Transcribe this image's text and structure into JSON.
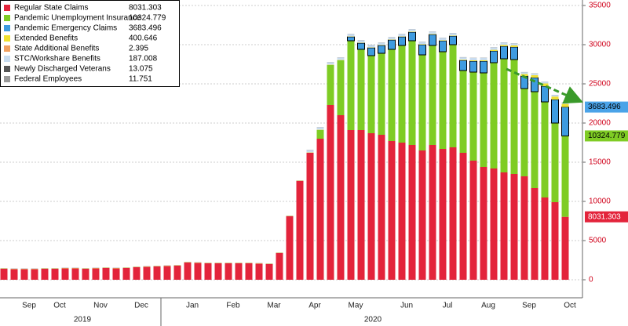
{
  "chart_data": {
    "type": "stacked_bar",
    "categories": [
      null,
      null,
      "Sep",
      null,
      null,
      "Oct",
      null,
      null,
      null,
      "Nov",
      null,
      null,
      null,
      "Dec",
      null,
      null,
      null,
      null,
      "Jan",
      null,
      null,
      null,
      "Feb",
      null,
      null,
      null,
      "Mar",
      null,
      null,
      null,
      "Apr",
      null,
      null,
      null,
      "May",
      null,
      null,
      null,
      null,
      "Jun",
      null,
      null,
      null,
      "Jul",
      null,
      null,
      null,
      "Aug",
      null,
      null,
      null,
      "Sep",
      null,
      null,
      null,
      "Oct"
    ],
    "years": [
      "2019",
      "2020"
    ],
    "series": [
      {
        "name": "Regular State Claims",
        "color": "#e3243b",
        "values": [
          1400,
          1350,
          1350,
          1350,
          1400,
          1400,
          1450,
          1450,
          1400,
          1450,
          1500,
          1450,
          1500,
          1600,
          1650,
          1700,
          1750,
          1800,
          2200,
          2150,
          2100,
          2100,
          2100,
          2100,
          2100,
          2050,
          2000,
          3400,
          8100,
          12600,
          16200,
          18000,
          22300,
          21000,
          19100,
          19100,
          18700,
          18500,
          17700,
          17500,
          17200,
          16500,
          17200,
          16700,
          16900,
          16200,
          15200,
          14400,
          14200,
          13700,
          13500,
          13200,
          11700,
          10500,
          9900,
          8031.303
        ]
      },
      {
        "name": "Pandemic Unemployment Insurance",
        "color": "#7fcc24",
        "values": [
          0,
          0,
          0,
          0,
          0,
          0,
          0,
          0,
          0,
          0,
          0,
          0,
          0,
          0,
          0,
          0,
          0,
          0,
          0,
          0,
          0,
          0,
          0,
          0,
          0,
          0,
          0,
          0,
          0,
          0,
          0,
          1100,
          5100,
          7000,
          11400,
          10300,
          9900,
          10400,
          11700,
          12400,
          13300,
          12200,
          12700,
          12400,
          13100,
          10500,
          11300,
          12000,
          13500,
          14500,
          14600,
          11200,
          12300,
          12200,
          10100,
          10324.779
        ]
      },
      {
        "name": "Pandemic Emergency Claims",
        "color": "#3e9be0",
        "values": [
          0,
          0,
          0,
          0,
          0,
          0,
          0,
          0,
          0,
          0,
          0,
          0,
          0,
          0,
          0,
          0,
          0,
          0,
          0,
          0,
          0,
          0,
          0,
          0,
          0,
          0,
          0,
          0,
          0,
          0,
          0,
          0,
          0,
          0,
          500,
          800,
          1000,
          1000,
          1200,
          1100,
          1100,
          1300,
          1400,
          1400,
          1100,
          1300,
          1400,
          1500,
          1500,
          1600,
          1600,
          1600,
          1800,
          2000,
          3000,
          3683.496
        ]
      },
      {
        "name": "Extended Benefits",
        "color": "#f0e030",
        "values": [
          40,
          40,
          40,
          40,
          40,
          40,
          40,
          40,
          40,
          40,
          40,
          40,
          40,
          40,
          40,
          40,
          40,
          40,
          40,
          40,
          40,
          40,
          40,
          40,
          40,
          40,
          40,
          40,
          40,
          40,
          40,
          40,
          40,
          40,
          40,
          40,
          40,
          40,
          40,
          40,
          60,
          60,
          60,
          60,
          60,
          80,
          100,
          120,
          140,
          170,
          200,
          250,
          300,
          350,
          380,
          400.646
        ]
      },
      {
        "name": "State Additional Benefits",
        "color": "#f0a060",
        "values": [
          3,
          3,
          3,
          3,
          3,
          3,
          3,
          3,
          3,
          3,
          3,
          3,
          3,
          3,
          3,
          3,
          3,
          3,
          3,
          3,
          3,
          3,
          3,
          3,
          3,
          3,
          3,
          3,
          3,
          3,
          3,
          3,
          3,
          3,
          3,
          3,
          3,
          3,
          3,
          3,
          3,
          3,
          3,
          3,
          3,
          3,
          3,
          3,
          3,
          3,
          3,
          3,
          3,
          3,
          3,
          2.395
        ]
      },
      {
        "name": "STC/Workshare Benefits",
        "color": "#c8dcf0",
        "values": [
          20,
          20,
          20,
          20,
          20,
          20,
          20,
          20,
          20,
          20,
          20,
          20,
          20,
          20,
          20,
          20,
          20,
          20,
          20,
          20,
          20,
          20,
          20,
          20,
          20,
          20,
          20,
          20,
          20,
          20,
          300,
          300,
          300,
          300,
          300,
          300,
          300,
          300,
          300,
          300,
          300,
          300,
          300,
          300,
          300,
          300,
          300,
          300,
          300,
          300,
          250,
          230,
          220,
          200,
          190,
          187.008
        ]
      },
      {
        "name": "Newly Discharged Veterans",
        "color": "#555555",
        "values": [
          13,
          13,
          13,
          13,
          13,
          13,
          13,
          13,
          13,
          13,
          13,
          13,
          13,
          13,
          13,
          13,
          13,
          13,
          13,
          13,
          13,
          13,
          13,
          13,
          13,
          13,
          13,
          13,
          13,
          13,
          13,
          13,
          13,
          13,
          13,
          13,
          13,
          13,
          13,
          13,
          13,
          13,
          13,
          13,
          13,
          13,
          13,
          13,
          13,
          13,
          13,
          13,
          13,
          13,
          13,
          13.075
        ]
      },
      {
        "name": "Federal Employees",
        "color": "#999999",
        "values": [
          15,
          15,
          15,
          15,
          15,
          15,
          15,
          15,
          15,
          15,
          15,
          15,
          15,
          15,
          15,
          15,
          15,
          15,
          15,
          15,
          15,
          15,
          15,
          15,
          15,
          15,
          15,
          15,
          15,
          15,
          15,
          15,
          15,
          15,
          15,
          15,
          15,
          15,
          15,
          15,
          15,
          15,
          15,
          15,
          15,
          15,
          15,
          15,
          15,
          15,
          15,
          15,
          15,
          15,
          15,
          11.751
        ]
      }
    ],
    "ylim": [
      0,
      35000
    ],
    "yticks": [
      0,
      5000,
      10000,
      15000,
      20000,
      25000,
      30000,
      35000
    ],
    "grid": true,
    "legend": "top-left"
  }
}
